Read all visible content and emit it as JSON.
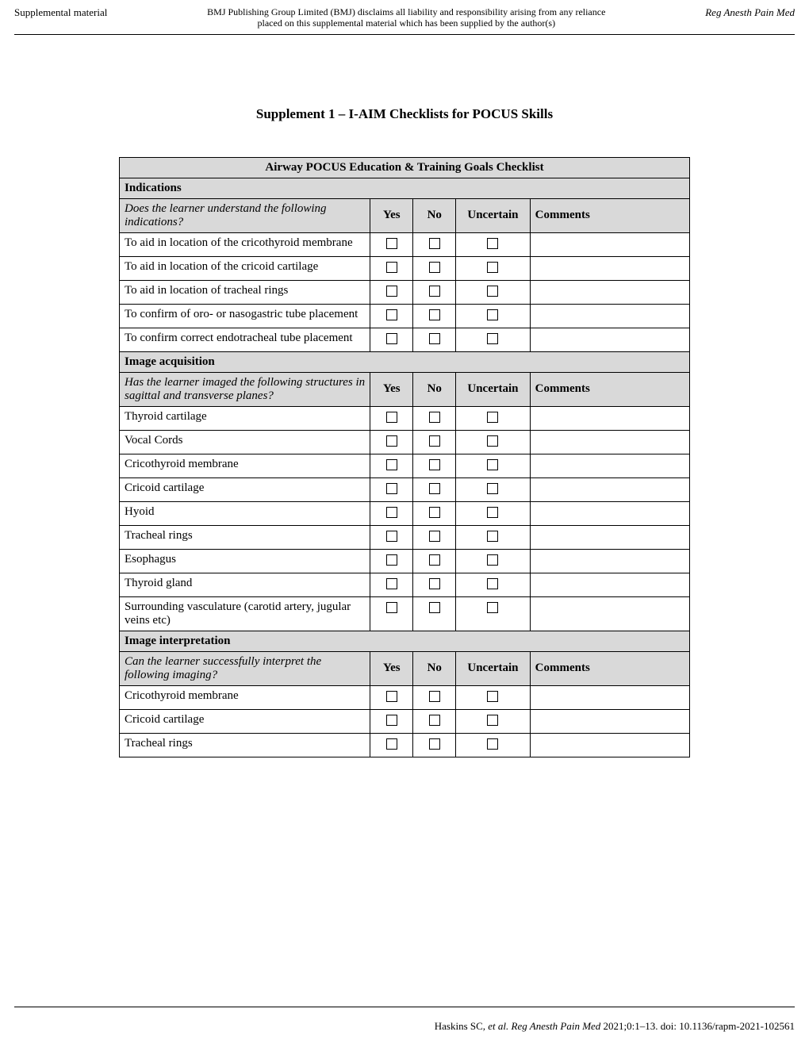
{
  "header": {
    "left": "Supplemental material",
    "center_line1": "BMJ Publishing Group Limited (BMJ) disclaims all liability and responsibility arising from any reliance",
    "center_line2": "placed on this supplemental material which has been supplied by the author(s)",
    "right": "Reg Anesth Pain Med"
  },
  "title": "Supplement 1 – I-AIM Checklists for POCUS Skills",
  "table": {
    "title": "Airway POCUS Education & Training Goals Checklist",
    "columns": {
      "yes": "Yes",
      "no": "No",
      "uncertain": "Uncertain",
      "comments": "Comments"
    },
    "sections": [
      {
        "heading": "Indications",
        "question": "Does the learner understand the following indications?",
        "items": [
          "To aid in location of the cricothyroid membrane",
          "To aid in location of the cricoid cartilage",
          "To aid in location of tracheal rings",
          "To confirm of oro- or nasogastric tube placement",
          "To confirm correct endotracheal tube placement"
        ]
      },
      {
        "heading": "Image acquisition",
        "question": "Has the learner imaged the following structures in sagittal and transverse planes?",
        "items": [
          "Thyroid cartilage",
          "Vocal Cords",
          "Cricothyroid membrane",
          "Cricoid cartilage",
          "Hyoid",
          "Tracheal rings",
          "Esophagus",
          "Thyroid gland",
          "Surrounding vasculature (carotid artery, jugular veins etc)"
        ]
      },
      {
        "heading": "Image interpretation",
        "question": "Can the learner successfully interpret the following imaging?",
        "items": [
          "Cricothyroid membrane",
          "Cricoid cartilage",
          "Tracheal rings"
        ]
      }
    ]
  },
  "footer": {
    "authors": "Haskins SC",
    "etal": ", et al. ",
    "journal": "Reg Anesth Pain Med",
    "rest": " 2021;0:1–13. doi: 10.1136/rapm-2021-102561"
  }
}
